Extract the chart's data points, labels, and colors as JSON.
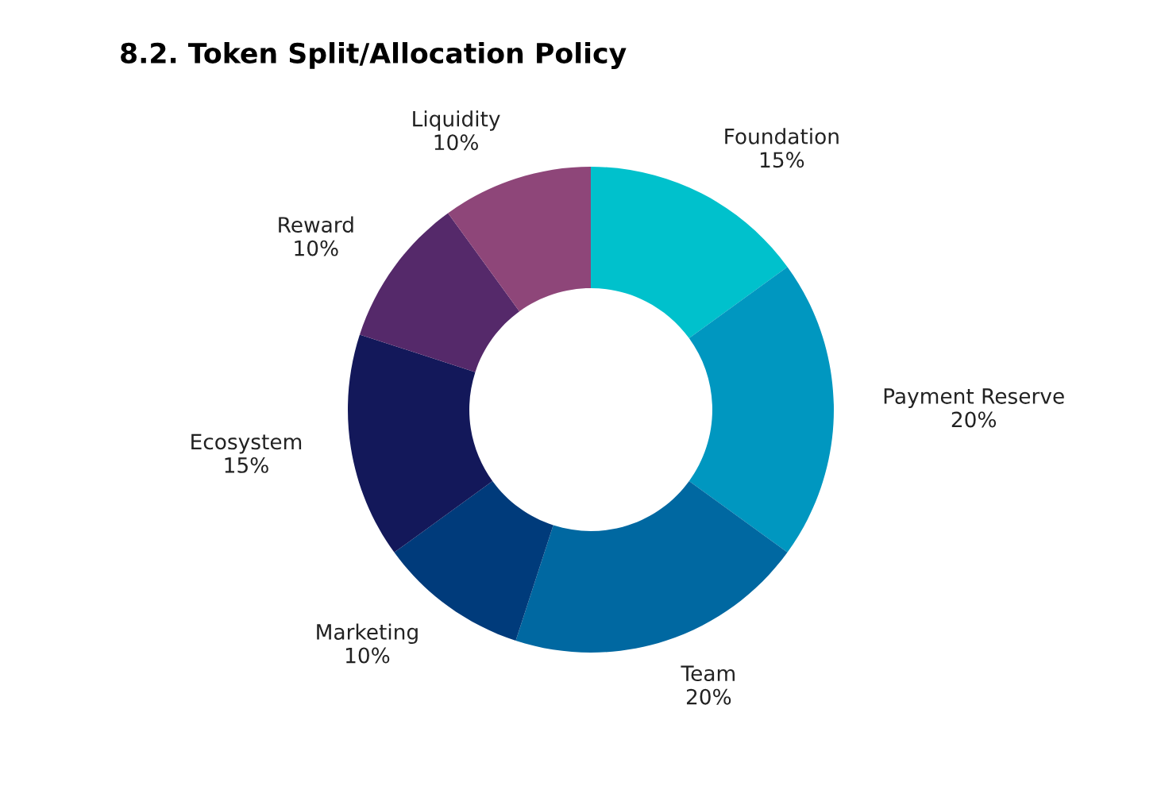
{
  "chart_data": {
    "type": "donut",
    "title": "8.2. Token Split/Allocation Policy",
    "categories": [
      "Foundation",
      "Payment Reserve",
      "Team",
      "Marketing",
      "Ecosystem",
      "Reward",
      "Liquidity"
    ],
    "values": [
      15,
      20,
      20,
      10,
      15,
      10,
      10
    ],
    "value_labels": [
      "15%",
      "20%",
      "20%",
      "10%",
      "15%",
      "10%",
      "10%"
    ],
    "colors": [
      "#00c1cc",
      "#0097c0",
      "#0068a1",
      "#003b7b",
      "#13185a",
      "#55296a",
      "#8e4679"
    ],
    "legend": false
  }
}
